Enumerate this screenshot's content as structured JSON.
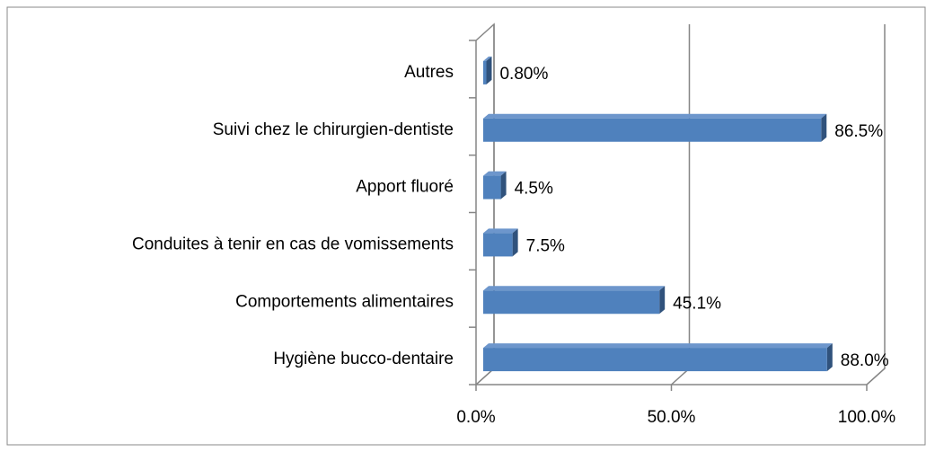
{
  "chart_data": {
    "type": "bar",
    "orientation": "horizontal",
    "categories": [
      "Autres",
      "Suivi chez le chirurgien-dentiste",
      "Apport fluoré",
      "Conduites à tenir en cas de vomissements",
      "Comportements alimentaires",
      "Hygiène bucco-dentaire"
    ],
    "values": [
      0.8,
      86.5,
      4.5,
      7.5,
      45.1,
      88.0
    ],
    "value_labels": [
      "0.80%",
      "86.5%",
      "4.5%",
      "7.5%",
      "45.1%",
      "88.0%"
    ],
    "color": "#4f81bd",
    "xlim": [
      0,
      100
    ],
    "xticks": [
      {
        "value": 0,
        "label": "0.0%"
      },
      {
        "value": 50,
        "label": "50.0%"
      },
      {
        "value": 100,
        "label": "100.0%"
      }
    ],
    "grid": true
  }
}
